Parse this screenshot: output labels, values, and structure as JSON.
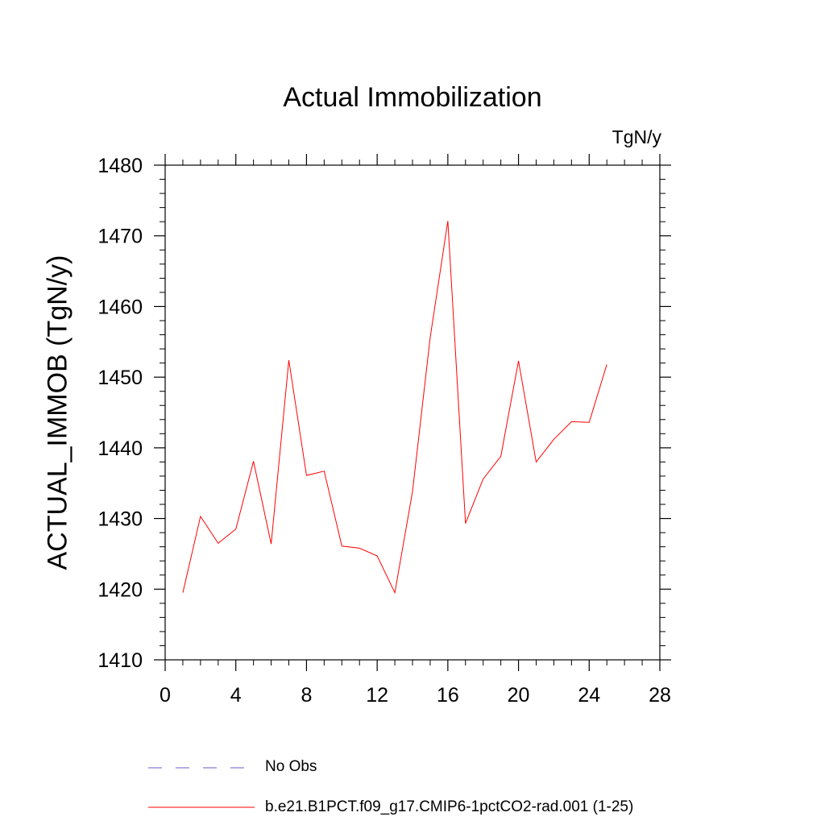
{
  "chart_data": {
    "type": "line",
    "title": "Actual Immobilization",
    "units_label": "TgN/y",
    "ylabel": "ACTUAL_IMMOB  (TgN/y)",
    "xlabel": "",
    "xlim": [
      0,
      28
    ],
    "ylim": [
      1410,
      1480
    ],
    "xticks": [
      0,
      4,
      8,
      12,
      16,
      20,
      24,
      28
    ],
    "yticks": [
      1410,
      1420,
      1430,
      1440,
      1450,
      1460,
      1470,
      1480
    ],
    "grid": false,
    "legend_position": "bottom",
    "series": [
      {
        "name": "b.e21.B1PCT.f09_g17.CMIP6-1pctCO2-rad.001 (1-25)",
        "color": "#ff0000",
        "style": "solid",
        "x": [
          1,
          2,
          3,
          4,
          5,
          6,
          7,
          8,
          9,
          10,
          11,
          12,
          13,
          14,
          15,
          16,
          17,
          18,
          19,
          20,
          21,
          22,
          23,
          24,
          25
        ],
        "y": [
          1419.5,
          1430.3,
          1426.5,
          1428.5,
          1438.1,
          1426.4,
          1452.4,
          1436.1,
          1436.7,
          1426.1,
          1425.8,
          1424.7,
          1419.5,
          1433.8,
          1455.6,
          1472.1,
          1429.3,
          1435.6,
          1438.8,
          1452.3,
          1438.0,
          1441.2,
          1443.7,
          1443.6,
          1451.8
        ]
      }
    ],
    "legend": [
      {
        "label": "No Obs",
        "color": "#6a5acd",
        "style": "dashed"
      },
      {
        "label": "b.e21.B1PCT.f09_g17.CMIP6-1pctCO2-rad.001 (1-25)",
        "color": "#ff0000",
        "style": "solid"
      }
    ]
  }
}
